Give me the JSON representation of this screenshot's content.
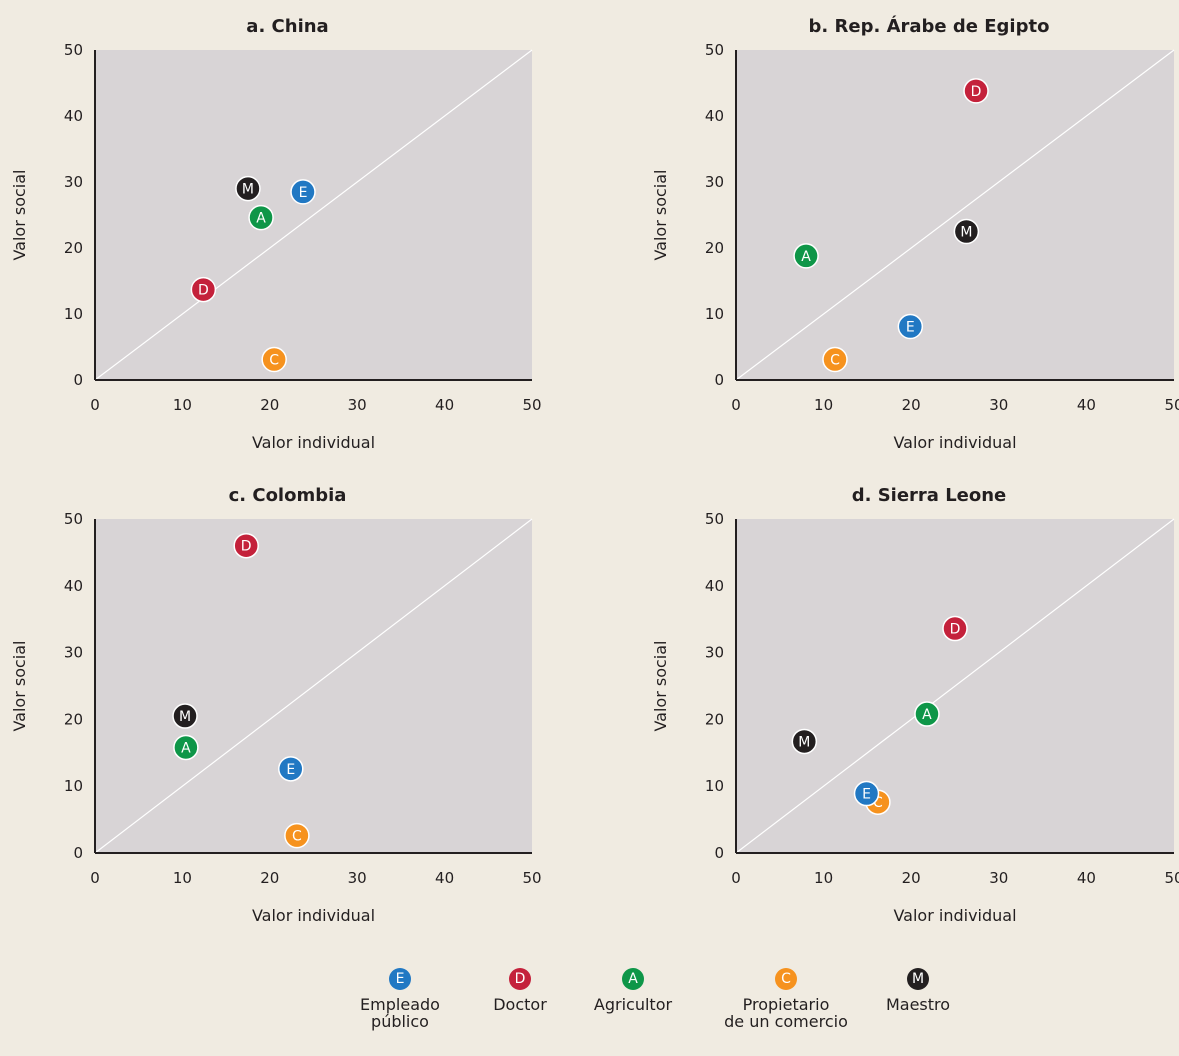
{
  "chart_data": [
    {
      "type": "scatter",
      "title": "a. China",
      "xlabel": "Valor individual",
      "ylabel": "Valor social",
      "xlim": [
        0,
        50
      ],
      "ylim": [
        0,
        50
      ],
      "xticks": [
        0,
        10,
        20,
        30,
        40,
        50
      ],
      "yticks": [
        0,
        10,
        20,
        30,
        40,
        50
      ],
      "diagonal": true,
      "grid": false,
      "points": [
        {
          "key": "E",
          "x": 23.8,
          "y": 28.5
        },
        {
          "key": "D",
          "x": 12.4,
          "y": 13.7
        },
        {
          "key": "A",
          "x": 19.0,
          "y": 24.6
        },
        {
          "key": "C",
          "x": 20.5,
          "y": 3.1
        },
        {
          "key": "M",
          "x": 17.5,
          "y": 29.0
        }
      ]
    },
    {
      "type": "scatter",
      "title": "b. Rep. Árabe de Egipto",
      "xlabel": "Valor individual",
      "ylabel": "Valor social",
      "xlim": [
        0,
        50
      ],
      "ylim": [
        0,
        50
      ],
      "xticks": [
        0,
        10,
        20,
        30,
        40,
        50
      ],
      "yticks": [
        0,
        10,
        20,
        30,
        40,
        50
      ],
      "diagonal": true,
      "grid": false,
      "points": [
        {
          "key": "E",
          "x": 19.9,
          "y": 8.1
        },
        {
          "key": "D",
          "x": 27.4,
          "y": 43.8
        },
        {
          "key": "A",
          "x": 8.0,
          "y": 18.8
        },
        {
          "key": "C",
          "x": 11.3,
          "y": 3.1
        },
        {
          "key": "M",
          "x": 26.3,
          "y": 22.5
        }
      ]
    },
    {
      "type": "scatter",
      "title": "c. Colombia",
      "xlabel": "Valor individual",
      "ylabel": "Valor social",
      "xlim": [
        0,
        50
      ],
      "ylim": [
        0,
        50
      ],
      "xticks": [
        0,
        10,
        20,
        30,
        40,
        50
      ],
      "yticks": [
        0,
        10,
        20,
        30,
        40,
        50
      ],
      "diagonal": true,
      "grid": false,
      "points": [
        {
          "key": "E",
          "x": 22.4,
          "y": 12.6
        },
        {
          "key": "D",
          "x": 17.3,
          "y": 46.0
        },
        {
          "key": "A",
          "x": 10.4,
          "y": 15.8
        },
        {
          "key": "C",
          "x": 23.1,
          "y": 2.6
        },
        {
          "key": "M",
          "x": 10.3,
          "y": 20.5
        }
      ]
    },
    {
      "type": "scatter",
      "title": "d. Sierra Leone",
      "xlabel": "Valor individual",
      "ylabel": "Valor social",
      "xlim": [
        0,
        50
      ],
      "ylim": [
        0,
        50
      ],
      "xticks": [
        0,
        10,
        20,
        30,
        40,
        50
      ],
      "yticks": [
        0,
        10,
        20,
        30,
        40,
        50
      ],
      "diagonal": true,
      "grid": false,
      "points": [
        {
          "key": "E",
          "x": 14.9,
          "y": 8.9
        },
        {
          "key": "D",
          "x": 25.0,
          "y": 33.6
        },
        {
          "key": "A",
          "x": 21.8,
          "y": 20.8
        },
        {
          "key": "C",
          "x": 16.2,
          "y": 7.6
        },
        {
          "key": "M",
          "x": 7.8,
          "y": 16.7
        }
      ]
    }
  ],
  "legend": [
    {
      "key": "E",
      "label": "Empleado\npúblico",
      "color": "#2178C3"
    },
    {
      "key": "D",
      "label": "Doctor",
      "color": "#C4213B"
    },
    {
      "key": "A",
      "label": "Agricultor",
      "color": "#0E9648"
    },
    {
      "key": "C",
      "label": "Propietario\nde un comercio",
      "color": "#F6921E"
    },
    {
      "key": "M",
      "label": "Maestro",
      "color": "#231F20"
    }
  ],
  "colors": {
    "background": "#F0EBE1",
    "plot_area": "#D8D4D6",
    "diagonal": "#FFFFFF",
    "axis": "#231F20"
  }
}
